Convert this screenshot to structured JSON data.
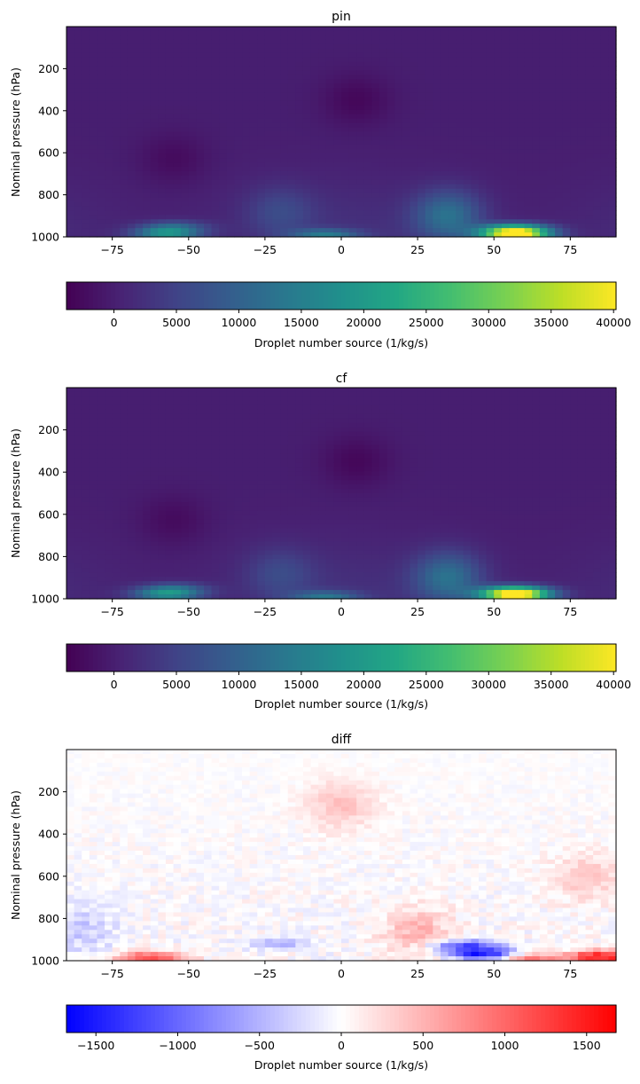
{
  "chart_data": [
    {
      "type": "heatmap",
      "title": "pin",
      "ylabel": "Nominal pressure (hPa)",
      "xlim": [
        -90,
        90
      ],
      "ylim": [
        1000,
        0
      ],
      "xticks": [
        "-75",
        "-50",
        "-25",
        "0",
        "25",
        "50",
        "75"
      ],
      "yticks": [
        "200",
        "400",
        "600",
        "800",
        "1000"
      ],
      "colormap": "viridis",
      "colorbar": {
        "label": "Droplet number source (1/kg/s)",
        "range": [
          -3800,
          40200
        ],
        "ticks": [
          "0",
          "5000",
          "10000",
          "15000",
          "20000",
          "25000",
          "30000",
          "35000",
          "40000"
        ]
      },
      "features": [
        {
          "lat": 57,
          "p": 990,
          "value": 40000
        },
        {
          "lat": 57,
          "p": 960,
          "value": 20000
        },
        {
          "lat": 35,
          "p": 900,
          "value": 12000
        },
        {
          "lat": -57,
          "p": 985,
          "value": 18000
        },
        {
          "lat": -55,
          "p": 950,
          "value": 9000
        },
        {
          "lat": -5,
          "p": 990,
          "value": 12000
        },
        {
          "lat": -20,
          "p": 880,
          "value": 5000
        },
        {
          "lat": 5,
          "p": 350,
          "value": -3000
        },
        {
          "lat": -55,
          "p": 630,
          "value": -2500
        }
      ]
    },
    {
      "type": "heatmap",
      "title": "cf",
      "ylabel": "Nominal pressure (hPa)",
      "xlim": [
        -90,
        90
      ],
      "ylim": [
        1000,
        0
      ],
      "xticks": [
        "-75",
        "-50",
        "-25",
        "0",
        "25",
        "50",
        "75"
      ],
      "yticks": [
        "200",
        "400",
        "600",
        "800",
        "1000"
      ],
      "colormap": "viridis",
      "colorbar": {
        "label": "Droplet number source (1/kg/s)",
        "range": [
          -3800,
          40200
        ],
        "ticks": [
          "0",
          "5000",
          "10000",
          "15000",
          "20000",
          "25000",
          "30000",
          "35000",
          "40000"
        ]
      },
      "features": [
        {
          "lat": 57,
          "p": 985,
          "value": 38000
        },
        {
          "lat": 57,
          "p": 960,
          "value": 19000
        },
        {
          "lat": 35,
          "p": 900,
          "value": 12000
        },
        {
          "lat": -57,
          "p": 980,
          "value": 17000
        },
        {
          "lat": -55,
          "p": 950,
          "value": 9000
        },
        {
          "lat": -5,
          "p": 990,
          "value": 11000
        },
        {
          "lat": -20,
          "p": 880,
          "value": 5000
        },
        {
          "lat": 5,
          "p": 350,
          "value": -3000
        },
        {
          "lat": -55,
          "p": 630,
          "value": -2500
        }
      ]
    },
    {
      "type": "heatmap",
      "title": "diff",
      "ylabel": "Nominal pressure (hPa)",
      "xlim": [
        -90,
        90
      ],
      "ylim": [
        1000,
        0
      ],
      "xticks": [
        "-75",
        "-50",
        "-25",
        "0",
        "25",
        "50",
        "75"
      ],
      "yticks": [
        "200",
        "400",
        "600",
        "800",
        "1000"
      ],
      "colormap": "bwr",
      "colorbar": {
        "label": "Droplet number source (1/kg/s)",
        "range": [
          -1680,
          1680
        ],
        "ticks": [
          "−1500",
          "−1000",
          "−500",
          "0",
          "500",
          "1000",
          "1500"
        ]
      },
      "features": [
        {
          "lat": -62,
          "p": 985,
          "value": 1300
        },
        {
          "lat": 85,
          "p": 980,
          "value": 1600
        },
        {
          "lat": 60,
          "p": 990,
          "value": 900
        },
        {
          "lat": 47,
          "p": 970,
          "value": -1500
        },
        {
          "lat": 40,
          "p": 930,
          "value": -1200
        },
        {
          "lat": 25,
          "p": 870,
          "value": 500
        },
        {
          "lat": -20,
          "p": 920,
          "value": -500
        },
        {
          "lat": 0,
          "p": 260,
          "value": 400
        },
        {
          "lat": -85,
          "p": 850,
          "value": -350
        },
        {
          "lat": 80,
          "p": 600,
          "value": 350
        }
      ]
    }
  ]
}
